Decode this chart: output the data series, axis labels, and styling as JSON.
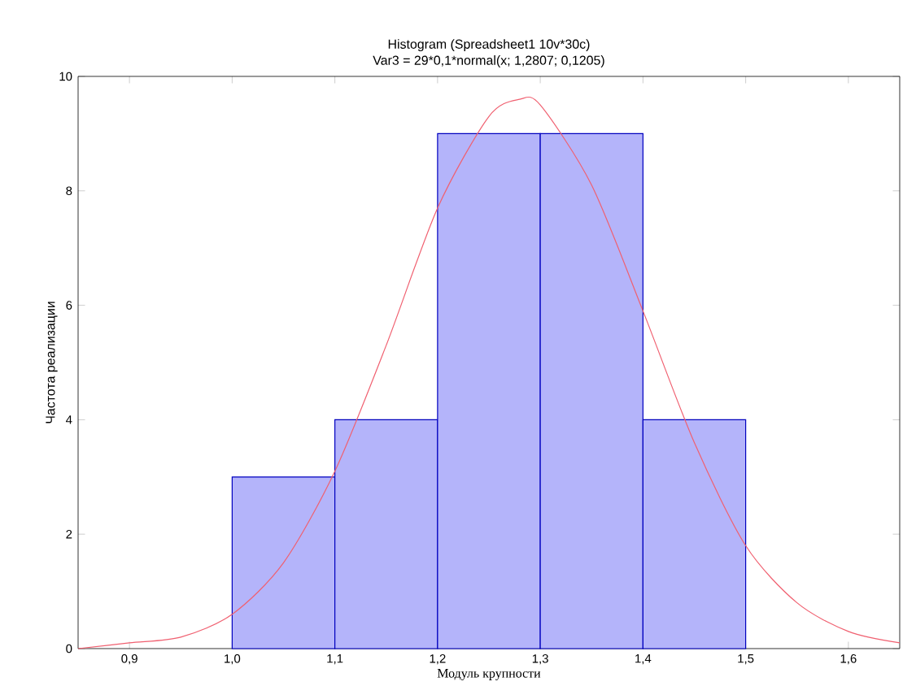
{
  "chart_data": {
    "type": "histogram",
    "title": "Histogram (Spreadsheet1 10v*30c)",
    "subtitle": "Var3 = 29*0,1*normal(x; 1,2807; 0,1205)",
    "xlabel": "Модуль крупности",
    "ylabel": "Частота реализации",
    "xlim": [
      0.85,
      1.65
    ],
    "ylim": [
      0,
      10
    ],
    "xticks": [
      {
        "value": 0.9,
        "label": "0,9"
      },
      {
        "value": 1.0,
        "label": "1,0"
      },
      {
        "value": 1.1,
        "label": "1,1"
      },
      {
        "value": 1.2,
        "label": "1,2"
      },
      {
        "value": 1.3,
        "label": "1,3"
      },
      {
        "value": 1.4,
        "label": "1,4"
      },
      {
        "value": 1.5,
        "label": "1,5"
      },
      {
        "value": 1.6,
        "label": "1,6"
      }
    ],
    "yticks": [
      0,
      2,
      4,
      6,
      8,
      10
    ],
    "grid": false,
    "series": [
      {
        "color": "#b4b4fa",
        "bins": [
          1.0,
          1.1,
          1.2,
          1.3,
          1.4,
          1.5
        ],
        "values": [
          3,
          4,
          9,
          9,
          4
        ]
      },
      {
        "type": "line",
        "color": "#f06070",
        "marker": "none",
        "x": [
          0.85,
          0.9,
          0.95,
          1.0,
          1.05,
          1.1,
          1.15,
          1.2,
          1.25,
          1.28,
          1.3,
          1.35,
          1.4,
          1.45,
          1.5,
          1.55,
          1.6,
          1.65
        ],
        "values": [
          0.0,
          0.1,
          0.2,
          0.6,
          1.5,
          3.1,
          5.3,
          7.7,
          9.3,
          9.6,
          9.5,
          8.1,
          5.9,
          3.6,
          1.8,
          0.8,
          0.3,
          0.1
        ]
      }
    ]
  }
}
